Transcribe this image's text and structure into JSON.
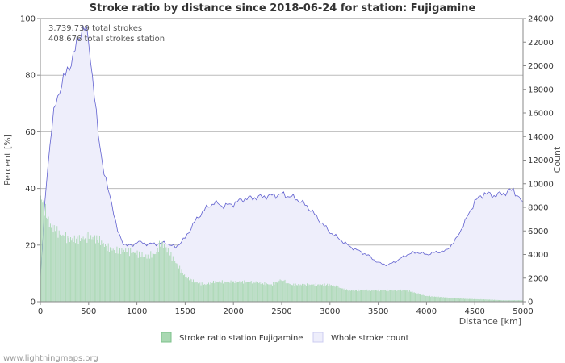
{
  "footer": "www.lightningmaps.org",
  "chart_data": {
    "type": "bar",
    "title": "Stroke ratio by distance since 2018-06-24 for station: Fujigamine",
    "annotations": [
      "3.739.739 total strokes",
      "408.676 total strokes station"
    ],
    "xlabel": "Distance   [km]",
    "ylabel_left": "Percent   [%]",
    "ylabel_right": "Count",
    "xlim": [
      0,
      5000
    ],
    "ylim_left": [
      0,
      100
    ],
    "ylim_right": [
      0,
      24000
    ],
    "x_ticks": [
      0,
      500,
      1000,
      1500,
      2000,
      2500,
      3000,
      3500,
      4000,
      4500,
      5000
    ],
    "y_ticks_left": [
      0,
      20,
      40,
      60,
      80,
      100
    ],
    "y_ticks_right": [
      0,
      2000,
      4000,
      6000,
      8000,
      10000,
      12000,
      14000,
      16000,
      18000,
      20000,
      22000,
      24000
    ],
    "colors": {
      "ratio_bar": "#a9d8b2",
      "ratio_edge": "#7cc18b",
      "count_fill": "#eeeefb",
      "count_line": "#6060d0",
      "grid": "#bbbbbb"
    },
    "series": [
      {
        "name": "Stroke ratio station Fujigamine",
        "axis": "left",
        "type": "bar",
        "x": [
          0,
          100,
          200,
          300,
          400,
          500,
          600,
          700,
          800,
          900,
          1000,
          1100,
          1200,
          1250,
          1300,
          1400,
          1500,
          1600,
          1700,
          1800,
          2000,
          2200,
          2400,
          2500,
          2600,
          2800,
          3000,
          3200,
          3400,
          3600,
          3800,
          3900,
          4000,
          4200,
          4400,
          4600,
          4800,
          5000
        ],
        "values": [
          38,
          27,
          24,
          22,
          22,
          23,
          22,
          19,
          18,
          18,
          17,
          16,
          17,
          21,
          19,
          14,
          9,
          7,
          6,
          7,
          7,
          7,
          6,
          8,
          6,
          6,
          6,
          4,
          4,
          4,
          4,
          3,
          2,
          1.5,
          1,
          0.8,
          0.5,
          0.5
        ]
      },
      {
        "name": "Whole stroke count",
        "axis": "right",
        "type": "area",
        "x": [
          0,
          50,
          100,
          150,
          200,
          250,
          300,
          350,
          400,
          450,
          500,
          550,
          600,
          650,
          700,
          750,
          800,
          850,
          900,
          950,
          1000,
          1100,
          1200,
          1300,
          1400,
          1500,
          1600,
          1700,
          1800,
          1900,
          2000,
          2100,
          2200,
          2300,
          2400,
          2500,
          2600,
          2700,
          2800,
          2900,
          3000,
          3100,
          3200,
          3300,
          3400,
          3500,
          3600,
          3700,
          3800,
          3900,
          4000,
          4100,
          4200,
          4300,
          4400,
          4500,
          4600,
          4700,
          4800,
          4900,
          5000
        ],
        "values": [
          2000,
          9000,
          13500,
          16500,
          18000,
          19000,
          20000,
          21000,
          22500,
          23500,
          22000,
          18500,
          14000,
          11500,
          9500,
          8000,
          6000,
          5000,
          4800,
          4700,
          5100,
          4900,
          4900,
          5000,
          4600,
          5400,
          6800,
          7800,
          8400,
          8100,
          8300,
          8700,
          8800,
          8900,
          9000,
          9100,
          8900,
          8500,
          7800,
          6800,
          5900,
          5300,
          4700,
          4300,
          3900,
          3300,
          3100,
          3500,
          4000,
          4200,
          4000,
          4200,
          4300,
          5200,
          6800,
          8500,
          9200,
          9000,
          9200,
          9500,
          8300
        ]
      }
    ]
  }
}
